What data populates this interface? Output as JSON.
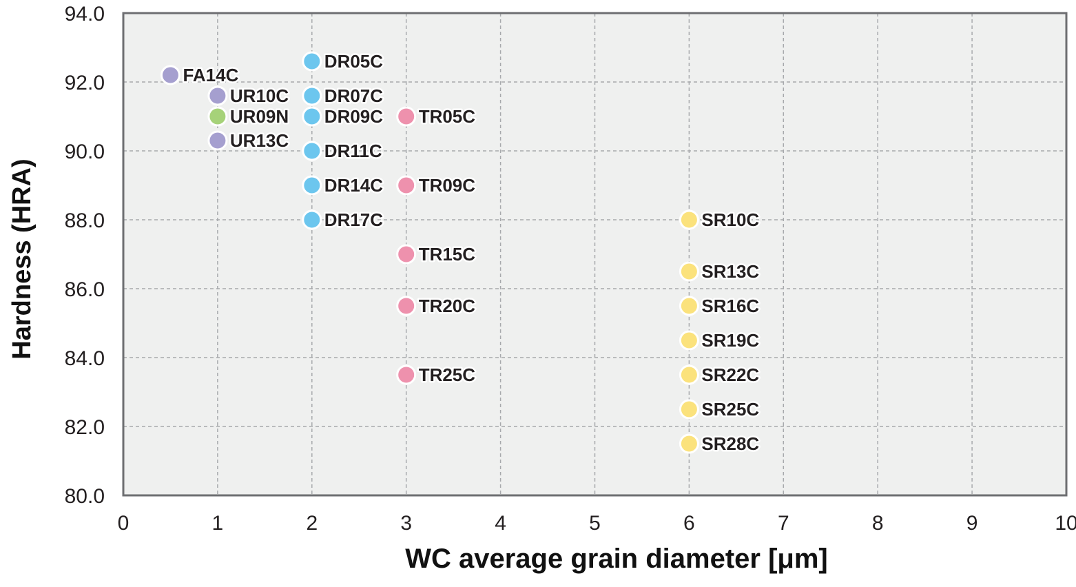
{
  "chart_data": {
    "type": "scatter",
    "title": "",
    "xlabel": "WC average grain diameter [μm]",
    "ylabel": "Hardness (HRA)",
    "xlim": [
      0,
      10
    ],
    "ylim": [
      80,
      94
    ],
    "x_ticks": [
      "0",
      "1",
      "2",
      "3",
      "4",
      "5",
      "6",
      "7",
      "8",
      "9",
      "10"
    ],
    "y_ticks": [
      "80.0",
      "82.0",
      "84.0",
      "86.0",
      "88.0",
      "90.0",
      "92.0",
      "94.0"
    ],
    "grid": true,
    "colors": {
      "FA": "#a59fcf",
      "UR": "#a59fcf",
      "URN": "#a6d279",
      "DR": "#6cc6ee",
      "TR": "#ee91ad",
      "SR": "#fbe27c"
    },
    "points": [
      {
        "label": "FA14C",
        "x": 0.5,
        "y": 92.2,
        "color": "#a59fcf"
      },
      {
        "label": "UR10C",
        "x": 1.0,
        "y": 91.6,
        "color": "#a59fcf"
      },
      {
        "label": "UR09N",
        "x": 1.0,
        "y": 91.0,
        "color": "#a6d279"
      },
      {
        "label": "UR13C",
        "x": 1.0,
        "y": 90.3,
        "color": "#a59fcf"
      },
      {
        "label": "DR05C",
        "x": 2.0,
        "y": 92.6,
        "color": "#6cc6ee"
      },
      {
        "label": "DR07C",
        "x": 2.0,
        "y": 91.6,
        "color": "#6cc6ee"
      },
      {
        "label": "DR09C",
        "x": 2.0,
        "y": 91.0,
        "color": "#6cc6ee"
      },
      {
        "label": "DR11C",
        "x": 2.0,
        "y": 90.0,
        "color": "#6cc6ee"
      },
      {
        "label": "DR14C",
        "x": 2.0,
        "y": 89.0,
        "color": "#6cc6ee"
      },
      {
        "label": "DR17C",
        "x": 2.0,
        "y": 88.0,
        "color": "#6cc6ee"
      },
      {
        "label": "TR05C",
        "x": 3.0,
        "y": 91.0,
        "color": "#ee91ad"
      },
      {
        "label": "TR09C",
        "x": 3.0,
        "y": 89.0,
        "color": "#ee91ad"
      },
      {
        "label": "TR15C",
        "x": 3.0,
        "y": 87.0,
        "color": "#ee91ad"
      },
      {
        "label": "TR20C",
        "x": 3.0,
        "y": 85.5,
        "color": "#ee91ad"
      },
      {
        "label": "TR25C",
        "x": 3.0,
        "y": 83.5,
        "color": "#ee91ad"
      },
      {
        "label": "SR10C",
        "x": 6.0,
        "y": 88.0,
        "color": "#fbe27c"
      },
      {
        "label": "SR13C",
        "x": 6.0,
        "y": 86.5,
        "color": "#fbe27c"
      },
      {
        "label": "SR16C",
        "x": 6.0,
        "y": 85.5,
        "color": "#fbe27c"
      },
      {
        "label": "SR19C",
        "x": 6.0,
        "y": 84.5,
        "color": "#fbe27c"
      },
      {
        "label": "SR22C",
        "x": 6.0,
        "y": 83.5,
        "color": "#fbe27c"
      },
      {
        "label": "SR25C",
        "x": 6.0,
        "y": 82.5,
        "color": "#fbe27c"
      },
      {
        "label": "SR28C",
        "x": 6.0,
        "y": 81.5,
        "color": "#fbe27c"
      }
    ]
  }
}
